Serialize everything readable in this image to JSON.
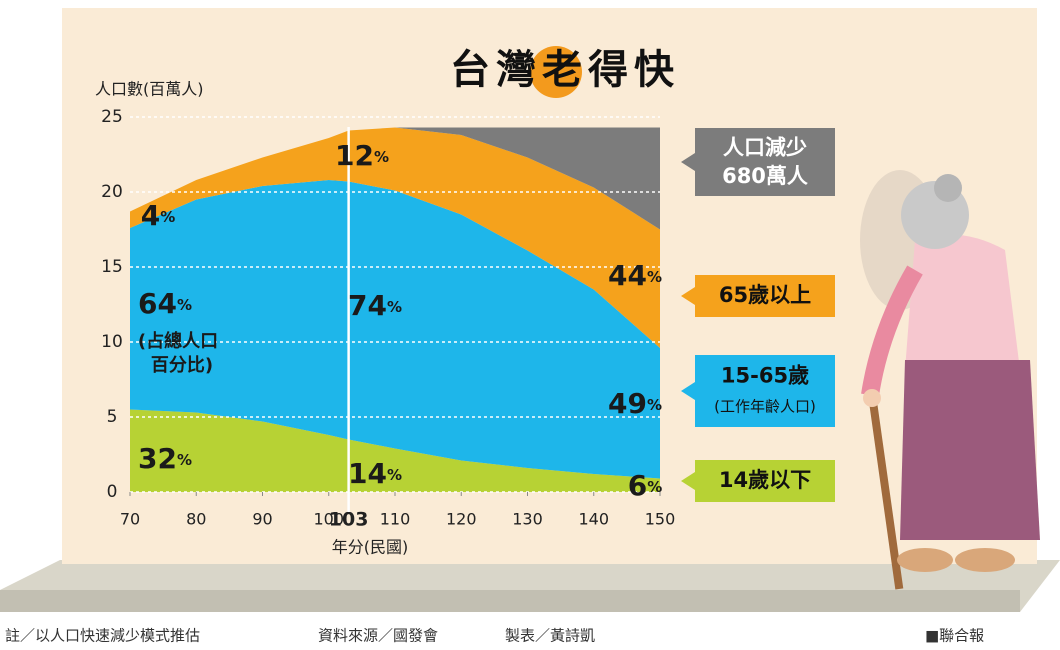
{
  "chart_data": {
    "type": "stacked-area",
    "title": "台灣老得快",
    "y_axis_label": "人口數(百萬人)",
    "x_axis_label": "年分(民國)",
    "x": [
      70,
      80,
      90,
      100,
      103,
      110,
      120,
      130,
      140,
      150
    ],
    "xlim": [
      70,
      150
    ],
    "xticks": [
      70,
      80,
      90,
      100,
      103,
      110,
      120,
      130,
      140,
      150
    ],
    "highlight_x": 103,
    "ylim": [
      0,
      25
    ],
    "yticks": [
      0,
      5,
      10,
      15,
      20,
      25
    ],
    "grid": true,
    "series": [
      {
        "name": "14歲以下",
        "color": "#b7d234",
        "values": [
          5.5,
          5.3,
          4.7,
          3.8,
          3.5,
          2.9,
          2.1,
          1.6,
          1.2,
          0.9
        ],
        "share_labels": [
          "32%",
          "14%",
          "6%"
        ]
      },
      {
        "name": "15-65歲",
        "note": "(工作年齡人口)",
        "color": "#1eb6ea",
        "values": [
          12.1,
          14.2,
          15.7,
          17.0,
          17.2,
          17.2,
          16.4,
          14.5,
          12.3,
          8.7
        ],
        "share_labels": [
          "64%",
          "74%",
          "49%"
        ]
      },
      {
        "name": "65歲以上",
        "color": "#f5a21c",
        "values": [
          1.1,
          1.3,
          1.9,
          2.8,
          3.4,
          4.2,
          5.3,
          6.2,
          6.8,
          7.9
        ],
        "share_labels": [
          "4%",
          "12%",
          "44%"
        ]
      },
      {
        "name": "人口減少",
        "note": "680萬人",
        "color": "#7c7c7c",
        "values": [
          null,
          null,
          null,
          null,
          null,
          0,
          0.5,
          2.0,
          4.0,
          6.8
        ],
        "share_labels": []
      }
    ],
    "share_note": [
      "(占總人口",
      "百分比)"
    ],
    "footer": [
      "註／以人口快速減少模式推估",
      "資料來源／國發會",
      "製表／黃詩凱"
    ],
    "source": "■聯合報"
  }
}
